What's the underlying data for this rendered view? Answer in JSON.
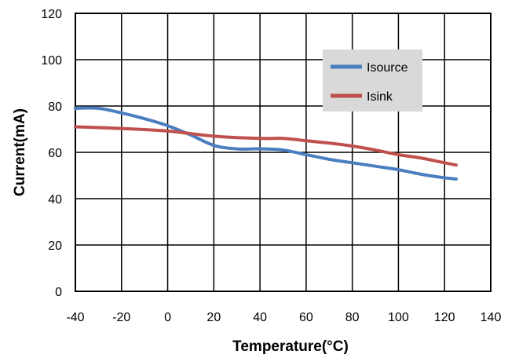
{
  "chart_data": {
    "type": "line",
    "title": "",
    "xlabel": "Temperature(°C)",
    "ylabel": "Current(mA)",
    "xlim": [
      -40,
      140
    ],
    "ylim": [
      0,
      120
    ],
    "x_ticks": [
      -40,
      -20,
      0,
      20,
      40,
      60,
      80,
      100,
      120,
      140
    ],
    "y_ticks": [
      0,
      20,
      40,
      60,
      80,
      100,
      120
    ],
    "grid": true,
    "legend_position": "top-right",
    "series": [
      {
        "name": "Isource",
        "color": "#4a7ec0",
        "x": [
          -40,
          -30,
          -20,
          -10,
          0,
          10,
          20,
          30,
          40,
          50,
          60,
          70,
          80,
          90,
          100,
          110,
          120,
          125
        ],
        "y": [
          79,
          79,
          77,
          74.5,
          71.5,
          67.5,
          63,
          61.5,
          61.5,
          61,
          59,
          57,
          55.5,
          54,
          52.5,
          50.5,
          49,
          48.5
        ]
      },
      {
        "name": "Isink",
        "color": "#c0504d",
        "x": [
          -40,
          -20,
          0,
          20,
          40,
          50,
          60,
          70,
          80,
          90,
          100,
          110,
          120,
          125
        ],
        "y": [
          71,
          70.3,
          69.2,
          67,
          66,
          66,
          65,
          64,
          62.7,
          61,
          59,
          57.5,
          55.5,
          54.5
        ]
      }
    ]
  }
}
